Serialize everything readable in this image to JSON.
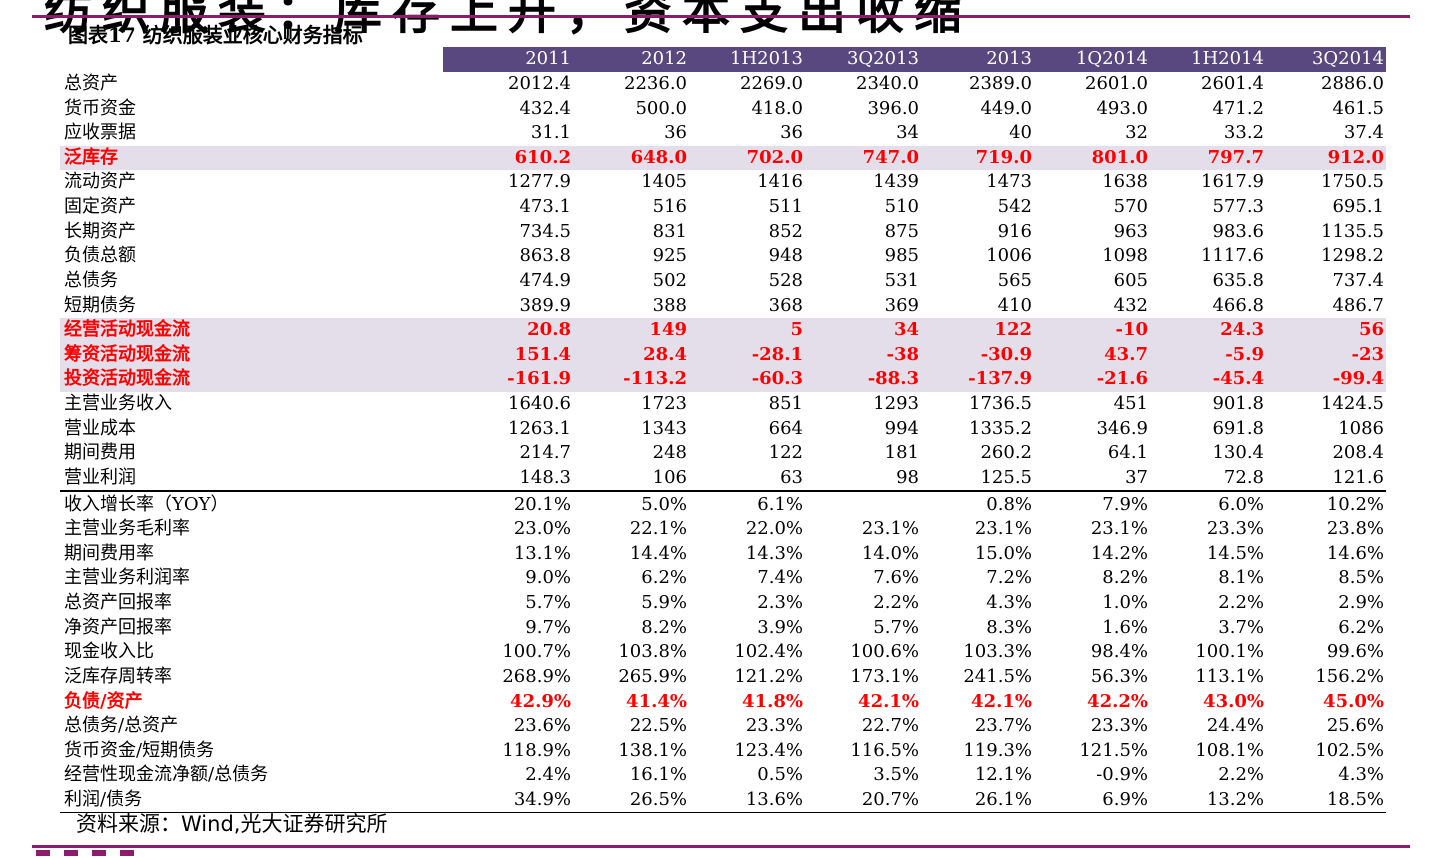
{
  "heading": "纺织服装：库存上升，资本支出收缩",
  "figure_title": "图表17 纺织服装业核心财务指标",
  "columns": [
    "",
    "2011",
    "2012",
    "1H2013",
    "3Q2013",
    "2013",
    "1Q2014",
    "1H2014",
    "3Q2014"
  ],
  "rows": [
    {
      "label": "总资产",
      "values": [
        "2012.4",
        "2236.0",
        "2269.0",
        "2340.0",
        "2389.0",
        "2601.0",
        "2601.4",
        "2886.0"
      ],
      "style": ""
    },
    {
      "label": "货币资金",
      "values": [
        "432.4",
        "500.0",
        "418.0",
        "396.0",
        "449.0",
        "493.0",
        "471.2",
        "461.5"
      ],
      "style": ""
    },
    {
      "label": "应收票据",
      "values": [
        "31.1",
        "36",
        "36",
        "34",
        "40",
        "32",
        "33.2",
        "37.4"
      ],
      "style": ""
    },
    {
      "label": "泛库存",
      "values": [
        "610.2",
        "648.0",
        "702.0",
        "747.0",
        "719.0",
        "801.0",
        "797.7",
        "912.0"
      ],
      "style": "hl"
    },
    {
      "label": "流动资产",
      "values": [
        "1277.9",
        "1405",
        "1416",
        "1439",
        "1473",
        "1638",
        "1617.9",
        "1750.5"
      ],
      "style": ""
    },
    {
      "label": "固定资产",
      "values": [
        "473.1",
        "516",
        "511",
        "510",
        "542",
        "570",
        "577.3",
        "695.1"
      ],
      "style": ""
    },
    {
      "label": "长期资产",
      "values": [
        "734.5",
        "831",
        "852",
        "875",
        "916",
        "963",
        "983.6",
        "1135.5"
      ],
      "style": ""
    },
    {
      "label": "负债总额",
      "values": [
        "863.8",
        "925",
        "948",
        "985",
        "1006",
        "1098",
        "1117.6",
        "1298.2"
      ],
      "style": ""
    },
    {
      "label": "总债务",
      "values": [
        "474.9",
        "502",
        "528",
        "531",
        "565",
        "605",
        "635.8",
        "737.4"
      ],
      "style": ""
    },
    {
      "label": "短期债务",
      "values": [
        "389.9",
        "388",
        "368",
        "369",
        "410",
        "432",
        "466.8",
        "486.7"
      ],
      "style": ""
    },
    {
      "label": "经营活动现金流",
      "values": [
        "20.8",
        "149",
        "5",
        "34",
        "122",
        "-10",
        "24.3",
        "56"
      ],
      "style": "hl"
    },
    {
      "label": "筹资活动现金流",
      "values": [
        "151.4",
        "28.4",
        "-28.1",
        "-38",
        "-30.9",
        "43.7",
        "-5.9",
        "-23"
      ],
      "style": "hl"
    },
    {
      "label": "投资活动现金流",
      "values": [
        "-161.9",
        "-113.2",
        "-60.3",
        "-88.3",
        "-137.9",
        "-21.6",
        "-45.4",
        "-99.4"
      ],
      "style": "hl"
    },
    {
      "label": "主营业务收入",
      "values": [
        "1640.6",
        "1723",
        "851",
        "1293",
        "1736.5",
        "451",
        "901.8",
        "1424.5"
      ],
      "style": ""
    },
    {
      "label": "营业成本",
      "values": [
        "1263.1",
        "1343",
        "664",
        "994",
        "1335.2",
        "346.9",
        "691.8",
        "1086"
      ],
      "style": ""
    },
    {
      "label": "期间费用",
      "values": [
        "214.7",
        "248",
        "122",
        "181",
        "260.2",
        "64.1",
        "130.4",
        "208.4"
      ],
      "style": ""
    },
    {
      "label": "营业利润",
      "values": [
        "148.3",
        "106",
        "63",
        "98",
        "125.5",
        "37",
        "72.8",
        "121.6"
      ],
      "style": ""
    },
    {
      "label": "收入增长率（YOY）",
      "values": [
        "20.1%",
        "5.0%",
        "6.1%",
        "",
        "0.8%",
        "7.9%",
        "6.0%",
        "10.2%"
      ],
      "style": "sep"
    },
    {
      "label": "主营业务毛利率",
      "values": [
        "23.0%",
        "22.1%",
        "22.0%",
        "23.1%",
        "23.1%",
        "23.1%",
        "23.3%",
        "23.8%"
      ],
      "style": ""
    },
    {
      "label": "期间费用率",
      "values": [
        "13.1%",
        "14.4%",
        "14.3%",
        "14.0%",
        "15.0%",
        "14.2%",
        "14.5%",
        "14.6%"
      ],
      "style": ""
    },
    {
      "label": "主营业务利润率",
      "values": [
        "9.0%",
        "6.2%",
        "7.4%",
        "7.6%",
        "7.2%",
        "8.2%",
        "8.1%",
        "8.5%"
      ],
      "style": ""
    },
    {
      "label": "总资产回报率",
      "values": [
        "5.7%",
        "5.9%",
        "2.3%",
        "2.2%",
        "4.3%",
        "1.0%",
        "2.2%",
        "2.9%"
      ],
      "style": ""
    },
    {
      "label": "净资产回报率",
      "values": [
        "9.7%",
        "8.2%",
        "3.9%",
        "5.7%",
        "8.3%",
        "1.6%",
        "3.7%",
        "6.2%"
      ],
      "style": ""
    },
    {
      "label": "现金收入比",
      "values": [
        "100.7%",
        "103.8%",
        "102.4%",
        "100.6%",
        "103.3%",
        "98.4%",
        "100.1%",
        "99.6%"
      ],
      "style": ""
    },
    {
      "label": "泛库存周转率",
      "values": [
        "268.9%",
        "265.9%",
        "121.2%",
        "173.1%",
        "241.5%",
        "56.3%",
        "113.1%",
        "156.2%"
      ],
      "style": ""
    },
    {
      "label": "负债/资产",
      "values": [
        "42.9%",
        "41.4%",
        "41.8%",
        "42.1%",
        "42.1%",
        "42.2%",
        "43.0%",
        "45.0%"
      ],
      "style": "red"
    },
    {
      "label": "总债务/总资产",
      "values": [
        "23.6%",
        "22.5%",
        "23.3%",
        "22.7%",
        "23.7%",
        "23.3%",
        "24.4%",
        "25.6%"
      ],
      "style": ""
    },
    {
      "label": "货币资金/短期债务",
      "values": [
        "118.9%",
        "138.1%",
        "123.4%",
        "116.5%",
        "119.3%",
        "121.5%",
        "108.1%",
        "102.5%"
      ],
      "style": ""
    },
    {
      "label": "经营性现金流净额/总债务",
      "values": [
        "2.4%",
        "16.1%",
        "0.5%",
        "3.5%",
        "12.1%",
        "-0.9%",
        "2.2%",
        "4.3%"
      ],
      "style": ""
    },
    {
      "label": "利润/债务",
      "values": [
        "34.9%",
        "26.5%",
        "13.6%",
        "20.7%",
        "26.1%",
        "6.9%",
        "13.2%",
        "18.5%"
      ],
      "style": "last"
    }
  ],
  "source": "资料来源：Wind,光大证券研究所",
  "colors": {
    "header_bg": "#594780",
    "highlight_bg": "#e3deea",
    "highlight_text": "#ff0000",
    "rule": "#8b1c6e"
  }
}
